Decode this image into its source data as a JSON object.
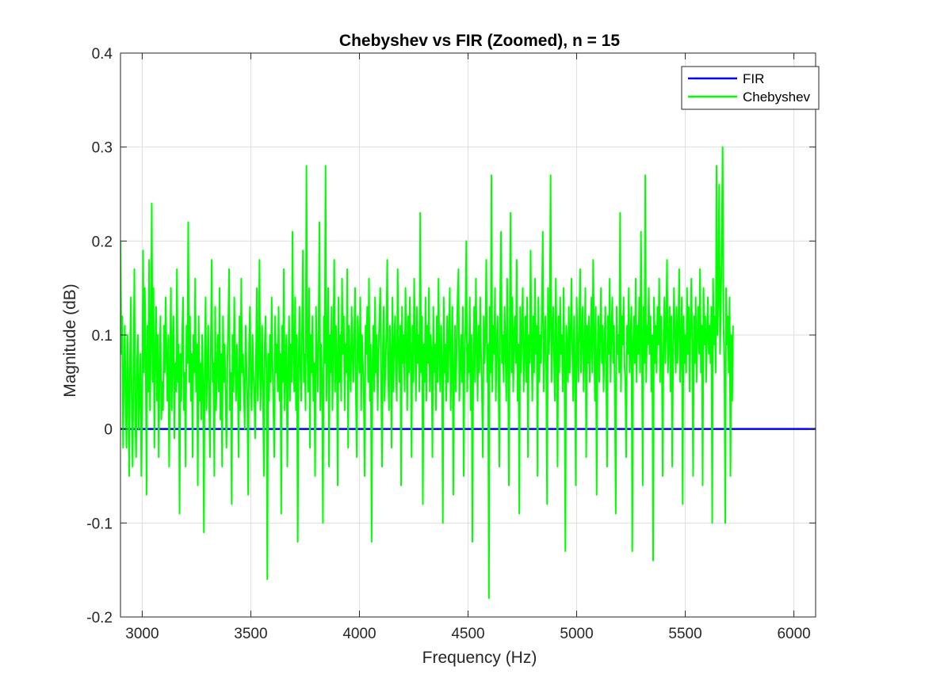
{
  "chart_data": {
    "type": "line",
    "title": "Chebyshev vs FIR (Zoomed), n = 15",
    "xlabel": "Frequency (Hz)",
    "ylabel": "Magnitude (dB)",
    "xlim": [
      2900,
      6100
    ],
    "ylim": [
      -0.2,
      0.4
    ],
    "xticks": [
      3000,
      3500,
      4000,
      4500,
      5000,
      5500,
      6000
    ],
    "xtick_labels": [
      "3000",
      "3500",
      "4000",
      "4500",
      "5000",
      "5500",
      "6000"
    ],
    "yticks": [
      -0.2,
      -0.1,
      0,
      0.1,
      0.2,
      0.3,
      0.4
    ],
    "ytick_labels": [
      "-0.2",
      "-0.1",
      "0",
      "0.1",
      "0.2",
      "0.3",
      "0.4"
    ],
    "grid": true,
    "legend_position": "top-right",
    "series": [
      {
        "name": "FIR",
        "color": "#0000ff",
        "x": [
          2900,
          6100
        ],
        "y": [
          0,
          0
        ]
      },
      {
        "name": "Chebyshev",
        "color": "#00ff00",
        "x_start": 2900,
        "x_step": 4,
        "y": [
          0.2,
          0.08,
          0.12,
          -0.02,
          0.06,
          0.11,
          0.03,
          -0.02,
          0.1,
          0.05,
          -0.05,
          0.08,
          0.14,
          0.02,
          -0.04,
          0.06,
          0.17,
          0.01,
          -0.03,
          0.07,
          0.1,
          0.0,
          0.04,
          0.08,
          -0.05,
          0.02,
          0.19,
          0.06,
          0.15,
          0.08,
          -0.07,
          0.11,
          0.04,
          0.18,
          0.02,
          0.09,
          0.24,
          0.05,
          0.15,
          -0.02,
          0.08,
          0.13,
          0.03,
          0.1,
          -0.03,
          0.07,
          0.12,
          0.01,
          0.05,
          0.02,
          0.11,
          0.06,
          0.14,
          0.08,
          0.03,
          0.1,
          -0.04,
          0.06,
          0.15,
          0.02,
          0.09,
          0.12,
          -0.01,
          0.07,
          0.04,
          0.17,
          0.05,
          0.09,
          -0.09,
          0.08,
          0.03,
          0.1,
          0.14,
          0.02,
          0.06,
          -0.04,
          0.11,
          0.07,
          0.22,
          0.05,
          0.12,
          0.03,
          0.08,
          -0.03,
          0.1,
          0.06,
          0.16,
          0.04,
          0.09,
          -0.06,
          0.12,
          0.03,
          0.07,
          0.01,
          0.1,
          0.05,
          -0.11,
          0.08,
          0.14,
          0.02,
          0.06,
          0.11,
          0.03,
          -0.03,
          0.09,
          0.18,
          0.05,
          0.07,
          -0.05,
          0.13,
          0.02,
          0.06,
          0.1,
          0.04,
          0.15,
          0.01,
          0.08,
          -0.04,
          0.12,
          0.05,
          0.09,
          0.03,
          -0.02,
          0.07,
          0.11,
          0.17,
          0.02,
          0.06,
          -0.08,
          0.1,
          0.04,
          0.14,
          0.07,
          0.03,
          0.09,
          0.05,
          -0.03,
          0.12,
          0.02,
          0.16,
          0.06,
          0.08,
          0.04,
          0.0,
          0.11,
          0.07,
          0.03,
          -0.07,
          0.09,
          0.13,
          0.05,
          0.02,
          0.1,
          0.06,
          0.04,
          -0.01,
          0.08,
          0.15,
          0.03,
          0.07,
          0.18,
          0.02,
          0.05,
          0.11,
          0.04,
          -0.05,
          0.09,
          0.12,
          0.06,
          -0.16,
          0.08,
          0.03,
          0.1,
          0.05,
          0.14,
          0.07,
          0.02,
          -0.03,
          0.12,
          0.06,
          0.09,
          0.04,
          0.13,
          0.03,
          0.08,
          -0.09,
          0.11,
          0.05,
          0.17,
          0.02,
          0.07,
          0.1,
          -0.04,
          0.06,
          0.12,
          0.03,
          0.09,
          0.05,
          0.21,
          0.08,
          0.04,
          0.14,
          0.02,
          0.1,
          -0.12,
          0.07,
          0.13,
          0.06,
          0.03,
          0.11,
          0.19,
          0.05,
          0.08,
          0.02,
          0.28,
          0.09,
          0.04,
          0.15,
          -0.02,
          0.1,
          0.06,
          0.12,
          0.03,
          0.07,
          -0.05,
          0.13,
          0.08,
          0.04,
          0.11,
          0.22,
          0.02,
          0.09,
          0.05,
          -0.1,
          0.12,
          0.07,
          0.28,
          0.03,
          0.08,
          0.15,
          -0.04,
          0.1,
          0.06,
          0.13,
          0.02,
          0.09,
          0.18,
          0.04,
          0.11,
          0.07,
          -0.06,
          0.14,
          0.05,
          0.1,
          0.03,
          0.16,
          0.08,
          0.12,
          0.02,
          0.09,
          0.06,
          0.17,
          -0.02,
          0.11,
          0.07,
          0.04,
          0.13,
          0.08,
          0.05,
          0.1,
          0.15,
          0.03,
          -0.03,
          0.12,
          0.09,
          0.06,
          0.14,
          0.02,
          0.1,
          0.07,
          0.04,
          -0.05,
          0.11,
          0.08,
          0.13,
          0.05,
          0.16,
          0.03,
          0.09,
          -0.12,
          0.07,
          0.11,
          0.04,
          0.14,
          0.06,
          0.1,
          0.02,
          0.08,
          0.12,
          0.15,
          0.05,
          -0.04,
          0.09,
          0.13,
          0.03,
          0.07,
          0.1,
          0.18,
          0.06,
          0.02,
          0.11,
          0.08,
          -0.02,
          0.14,
          0.04,
          0.09,
          0.12,
          0.06,
          0.03,
          0.17,
          0.08,
          0.05,
          0.11,
          -0.06,
          0.13,
          0.07,
          0.1,
          0.04,
          0.15,
          0.09,
          0.02,
          0.12,
          0.06,
          0.14,
          0.08,
          -0.03,
          0.11,
          0.05,
          0.16,
          0.09,
          0.03,
          0.13,
          0.07,
          0.1,
          0.04,
          0.23,
          0.06,
          0.12,
          -0.08,
          0.09,
          0.05,
          0.14,
          0.03,
          0.11,
          0.07,
          0.15,
          0.04,
          0.1,
          0.08,
          -0.03,
          0.13,
          0.06,
          0.09,
          0.02,
          0.12,
          0.05,
          0.16,
          0.08,
          0.04,
          0.11,
          0.07,
          -0.1,
          0.14,
          0.06,
          0.09,
          0.03,
          0.12,
          0.05,
          0.1,
          0.15,
          0.02,
          0.08,
          0.13,
          -0.07,
          0.06,
          0.11,
          0.04,
          0.09,
          0.14,
          0.17,
          0.03,
          0.07,
          0.1,
          0.05,
          0.13,
          -0.05,
          0.08,
          0.11,
          0.2,
          0.04,
          0.09,
          0.06,
          0.14,
          0.02,
          0.1,
          -0.12,
          0.07,
          0.13,
          0.05,
          0.16,
          0.09,
          0.03,
          0.11,
          0.06,
          0.14,
          0.08,
          0.04,
          -0.03,
          0.12,
          0.07,
          0.1,
          0.18,
          0.05,
          0.09,
          -0.18,
          0.13,
          0.06,
          0.27,
          0.04,
          0.11,
          0.08,
          0.15,
          0.03,
          0.09,
          0.12,
          0.06,
          -0.04,
          0.14,
          0.21,
          0.07,
          0.1,
          0.05,
          0.13,
          0.09,
          0.03,
          0.16,
          0.08,
          -0.06,
          0.11,
          0.23,
          0.06,
          0.14,
          0.04,
          0.1,
          0.12,
          0.07,
          0.18,
          0.03,
          0.09,
          -0.09,
          0.13,
          0.06,
          0.11,
          0.15,
          0.04,
          0.08,
          0.12,
          0.05,
          0.14,
          -0.03,
          0.1,
          0.07,
          0.19,
          0.09,
          0.03,
          0.12,
          0.06,
          0.16,
          0.08,
          0.11,
          -0.05,
          0.14,
          0.05,
          0.1,
          0.07,
          0.13,
          0.21,
          0.04,
          0.09,
          0.12,
          0.06,
          -0.08,
          0.15,
          0.08,
          0.11,
          0.27,
          0.05,
          0.1,
          0.13,
          0.07,
          0.03,
          0.16,
          0.09,
          -0.04,
          0.12,
          0.06,
          0.14,
          0.08,
          0.1,
          0.04,
          0.15,
          0.07,
          -0.13,
          0.11,
          0.09,
          0.05,
          0.13,
          0.06,
          0.1,
          0.16,
          0.08,
          0.03,
          0.12,
          0.07,
          -0.06,
          0.14,
          0.09,
          0.05,
          0.11,
          0.17,
          0.06,
          0.1,
          0.13,
          0.04,
          0.08,
          0.15,
          -0.03,
          0.11,
          0.07,
          0.12,
          0.05,
          0.09,
          0.14,
          0.06,
          0.18,
          0.1,
          0.03,
          0.13,
          -0.07,
          0.08,
          0.12,
          0.05,
          0.1,
          0.15,
          0.07,
          0.11,
          0.04,
          0.09,
          0.13,
          0.06,
          -0.04,
          0.12,
          0.08,
          0.16,
          0.05,
          0.1,
          0.14,
          0.07,
          0.11,
          0.03,
          -0.09,
          0.13,
          0.08,
          0.1,
          0.06,
          0.23,
          0.04,
          0.12,
          0.09,
          0.14,
          0.07,
          0.05,
          -0.03,
          0.11,
          0.08,
          0.15,
          0.06,
          0.1,
          0.13,
          -0.13,
          0.09,
          0.12,
          0.07,
          0.16,
          0.05,
          0.11,
          0.08,
          0.14,
          0.06,
          0.21,
          0.1,
          -0.06,
          0.13,
          0.07,
          0.27,
          0.05,
          0.11,
          0.09,
          0.15,
          0.08,
          0.12,
          0.04,
          0.1,
          -0.14,
          0.14,
          0.07,
          0.11,
          0.06,
          0.13,
          0.09,
          0.16,
          0.05,
          0.12,
          0.08,
          -0.05,
          0.1,
          0.14,
          0.07,
          0.11,
          0.18,
          0.06,
          0.09,
          0.13,
          0.04,
          0.12,
          -0.04,
          0.08,
          0.15,
          0.1,
          0.06,
          0.13,
          0.07,
          0.11,
          0.17,
          0.05,
          0.09,
          0.14,
          -0.08,
          0.12,
          0.07,
          0.1,
          0.06,
          0.15,
          0.08,
          0.13,
          0.04,
          0.11,
          0.16,
          0.09,
          -0.05,
          0.12,
          0.07,
          0.14,
          0.05,
          0.1,
          0.13,
          0.08,
          0.17,
          0.06,
          0.11,
          -0.06,
          0.15,
          0.09,
          0.12,
          0.05,
          0.1,
          0.14,
          0.08,
          0.11,
          0.07,
          0.13,
          -0.1,
          0.16,
          0.09,
          0.12,
          0.06,
          0.28,
          0.1,
          0.14,
          0.26,
          0.08,
          0.13,
          0.2,
          0.3,
          0.11,
          0.07,
          -0.1,
          0.15,
          0.09,
          0.12,
          0.06,
          0.14,
          -0.05,
          0.1,
          0.03,
          0.11
        ]
      }
    ]
  }
}
